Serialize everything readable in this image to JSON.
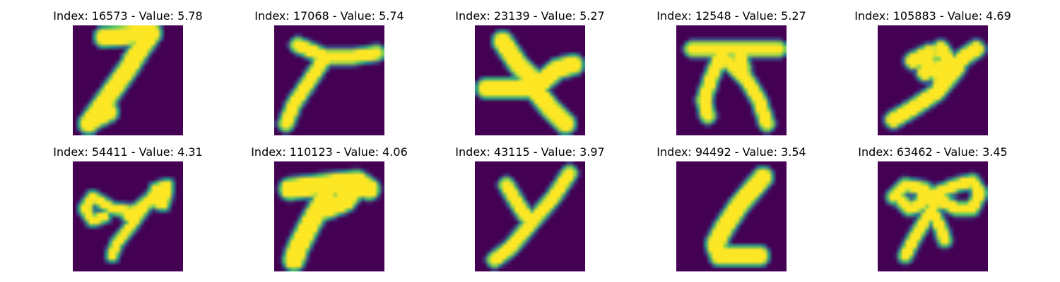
{
  "chart_data": {
    "type": "image_grid",
    "rows": 2,
    "cols": 5,
    "colormap": "viridis",
    "colors": {
      "background": "#440154",
      "low": "#3b528b",
      "mid": "#21918c",
      "high": "#5ec962",
      "peak": "#fde725"
    },
    "panels": [
      {
        "title": "Index: 16573 - Value: 5.78",
        "index": 16573,
        "value": 5.78,
        "glyph": "digit-7-slanted"
      },
      {
        "title": "Index: 17068 - Value: 5.74",
        "index": 17068,
        "value": 5.74,
        "glyph": "y-shape"
      },
      {
        "title": "Index: 23139 - Value: 5.27",
        "index": 23139,
        "value": 5.27,
        "glyph": "star-shape"
      },
      {
        "title": "Index: 12548 - Value: 5.27",
        "index": 12548,
        "value": 5.27,
        "glyph": "pi-shape"
      },
      {
        "title": "Index: 105883 - Value: 4.69",
        "index": 105883,
        "value": 4.69,
        "glyph": "scribble-7"
      },
      {
        "title": "Index: 54411 - Value: 4.31",
        "index": 54411,
        "value": 4.31,
        "glyph": "looped-7"
      },
      {
        "title": "Index: 110123 - Value: 4.06",
        "index": 110123,
        "value": 4.06,
        "glyph": "thick-7"
      },
      {
        "title": "Index: 43115 - Value: 3.97",
        "index": 43115,
        "value": 3.97,
        "glyph": "letter-y"
      },
      {
        "title": "Index: 94492 - Value: 3.54",
        "index": 94492,
        "value": 3.54,
        "glyph": "letter-l"
      },
      {
        "title": "Index: 63462 - Value: 3.45",
        "index": 63462,
        "value": 3.45,
        "glyph": "looped-x"
      }
    ]
  }
}
